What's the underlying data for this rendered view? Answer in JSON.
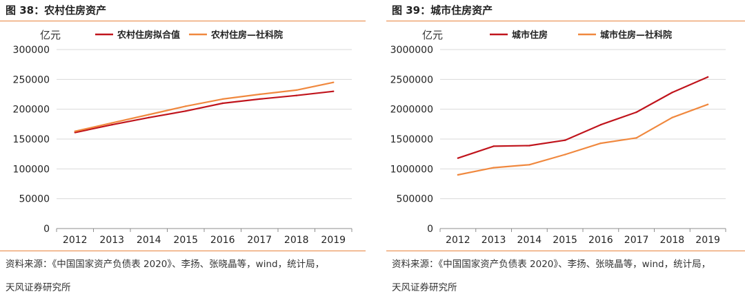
{
  "panels": [
    {
      "title": "图 38：农村住房资产",
      "source_line1": "资料来源：《中国国家资产负债表 2020》、李扬、张晓晶等，wind，统计局，",
      "source_line2": "天风证券研究所"
    },
    {
      "title": "图 39：城市住房资产",
      "source_line1": "资料来源：《中国国家资产负债表 2020》、李扬、张晓晶等，wind，统计局，",
      "source_line2": "天风证券研究所"
    }
  ],
  "chart_data": [
    {
      "type": "line",
      "title": "图 38：农村住房资产",
      "ylabel": "亿元",
      "xlabel": "",
      "categories": [
        "2012",
        "2013",
        "2014",
        "2015",
        "2016",
        "2017",
        "2018",
        "2019"
      ],
      "ylim": [
        0,
        300000
      ],
      "yticks": [
        0,
        50000,
        100000,
        150000,
        200000,
        250000,
        300000
      ],
      "ytick_labels": [
        "0",
        "50000",
        "100000",
        "150000",
        "200000",
        "250000",
        "300000"
      ],
      "grid": true,
      "legend_position": "top",
      "series": [
        {
          "name": "农村住房拟合值",
          "color": "#C0141C",
          "values": [
            161000,
            174000,
            186000,
            197000,
            210000,
            217000,
            223000,
            230000
          ]
        },
        {
          "name": "农村住房—社科院",
          "color": "#F0883E",
          "values": [
            163000,
            177000,
            191000,
            205000,
            217000,
            225000,
            232000,
            245000
          ]
        }
      ]
    },
    {
      "type": "line",
      "title": "图 39：城市住房资产",
      "ylabel": "亿元",
      "xlabel": "",
      "categories": [
        "2012",
        "2013",
        "2014",
        "2015",
        "2016",
        "2017",
        "2018",
        "2019"
      ],
      "ylim": [
        0,
        3000000
      ],
      "yticks": [
        0,
        500000,
        1000000,
        1500000,
        2000000,
        2500000,
        3000000
      ],
      "ytick_labels": [
        "0",
        "500000",
        "1000000",
        "1500000",
        "2000000",
        "2500000",
        "3000000"
      ],
      "grid": true,
      "legend_position": "top",
      "series": [
        {
          "name": "城市住房",
          "color": "#C0141C",
          "values": [
            1180000,
            1380000,
            1390000,
            1480000,
            1740000,
            1950000,
            2280000,
            2540000
          ]
        },
        {
          "name": "城市住房—社科院",
          "color": "#F0883E",
          "values": [
            900000,
            1020000,
            1070000,
            1240000,
            1430000,
            1520000,
            1860000,
            2080000
          ]
        }
      ]
    }
  ]
}
